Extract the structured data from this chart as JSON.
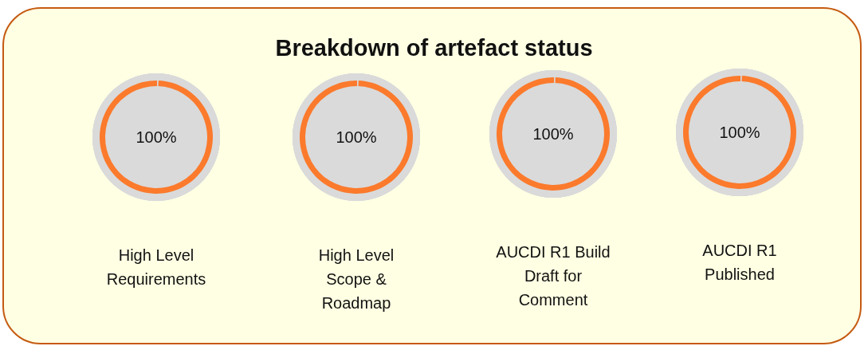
{
  "chart_data": [
    {
      "type": "other",
      "title": "Breakdown of artefact status"
    },
    {
      "type": "donut",
      "title": "High Level Requirements",
      "categories": [
        null,
        null
      ],
      "values": [
        99.7,
        0.3
      ],
      "colors": [
        "#fb7a2c",
        "#dadada"
      ],
      "value_labels": [
        "100%",
        null
      ]
    },
    {
      "type": "donut",
      "title": "High Level Scope & Roadmap",
      "categories": [
        null,
        null
      ],
      "values": [
        99.7,
        0.3
      ],
      "colors": [
        "#fb7a2c",
        "#dadada"
      ],
      "value_labels": [
        "100%",
        null
      ]
    },
    {
      "type": "donut",
      "title": "AUCDI R1 Build Draft for Comment",
      "categories": [
        null,
        null
      ],
      "values": [
        99.7,
        0.3
      ],
      "colors": [
        "#fb7a2c",
        "#dadada"
      ],
      "value_labels": [
        "100%",
        null
      ]
    },
    {
      "type": "donut",
      "title": "AUCDI R1 Published",
      "categories": [
        null,
        null
      ],
      "values": [
        99.7,
        0.3
      ],
      "colors": [
        "#fb7a2c",
        "#dadada"
      ],
      "value_labels": [
        "100%",
        null
      ]
    }
  ]
}
